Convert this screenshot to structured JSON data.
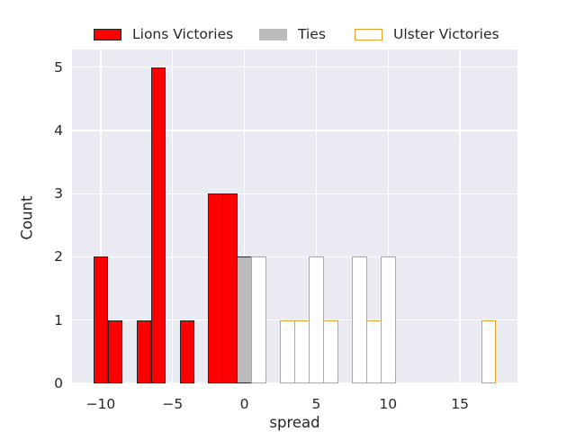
{
  "figure": {
    "background": "#ffffff",
    "plot_background": "#eaeaf2",
    "grid_color": "#ffffff",
    "text_color": "#262626"
  },
  "chart_data": {
    "type": "bar",
    "subtype": "histogram",
    "title": "",
    "xlabel": "spread",
    "ylabel": "Count",
    "xlim": [
      -12,
      19
    ],
    "ylim": [
      0,
      5.28
    ],
    "bin_width": 1.03,
    "grid": true,
    "legend_position": "top-center",
    "xticks": [
      {
        "value": -10,
        "label": "−10"
      },
      {
        "value": -5,
        "label": "−5"
      },
      {
        "value": 0,
        "label": "0"
      },
      {
        "value": 5,
        "label": "5"
      },
      {
        "value": 10,
        "label": "10"
      },
      {
        "value": 15,
        "label": "15"
      }
    ],
    "yticks": [
      {
        "value": 0,
        "label": "0"
      },
      {
        "value": 1,
        "label": "1"
      },
      {
        "value": 2,
        "label": "2"
      },
      {
        "value": 3,
        "label": "3"
      },
      {
        "value": 4,
        "label": "4"
      },
      {
        "value": 5,
        "label": "5"
      }
    ],
    "series": [
      {
        "name": "Lions Victories",
        "fill": "#ff0000",
        "edge": "#262626",
        "bins": [
          {
            "center": -10,
            "count": 2
          },
          {
            "center": -9,
            "count": 1
          },
          {
            "center": -7,
            "count": 1
          },
          {
            "center": -6,
            "count": 5
          },
          {
            "center": -4,
            "count": 1
          },
          {
            "center": -2,
            "count": 3
          },
          {
            "center": -1,
            "count": 3
          }
        ]
      },
      {
        "name": "Ties",
        "fill": "#bcbcbc",
        "edge": "#262626",
        "legend_edge": "#bcbcbc",
        "bins": [
          {
            "center": 0,
            "count": 2
          }
        ]
      },
      {
        "name": "Ulster Victories",
        "fill": "#ffffff",
        "edge": "#e5a32e",
        "bins": [
          {
            "center": 1,
            "count": 2
          },
          {
            "center": 3,
            "count": 1
          },
          {
            "center": 4,
            "count": 1
          },
          {
            "center": 5,
            "count": 2
          },
          {
            "center": 6,
            "count": 1
          },
          {
            "center": 8,
            "count": 2
          },
          {
            "center": 9,
            "count": 1
          },
          {
            "center": 10,
            "count": 2
          },
          {
            "center": 17,
            "count": 1
          }
        ]
      }
    ]
  }
}
